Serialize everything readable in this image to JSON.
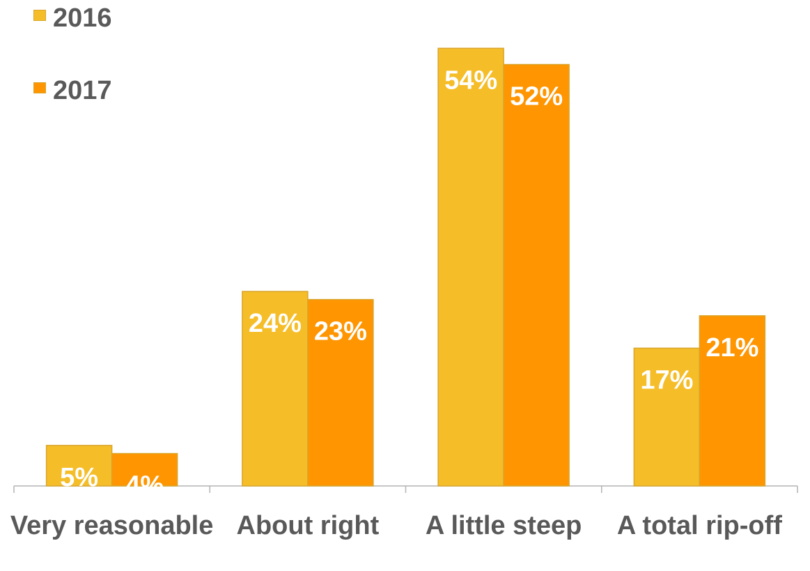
{
  "chart_data": {
    "type": "bar",
    "categories": [
      "Very reasonable",
      "About right",
      "A little steep",
      "A total rip-off"
    ],
    "series": [
      {
        "name": "2016",
        "values": [
          5,
          24,
          54,
          17
        ],
        "labels": [
          "5%",
          "24%",
          "54%",
          "17%"
        ],
        "color": "#f5bd28"
      },
      {
        "name": "2017",
        "values": [
          4,
          23,
          52,
          21
        ],
        "labels": [
          "4%",
          "23%",
          "52%",
          "21%"
        ],
        "color": "#ff9500"
      }
    ],
    "ylim": [
      0,
      56
    ],
    "legend": "top-left",
    "grid": false,
    "colors": {
      "text": "#595959",
      "axis": "#b3b3b3",
      "data_label": "#ffffff"
    }
  }
}
